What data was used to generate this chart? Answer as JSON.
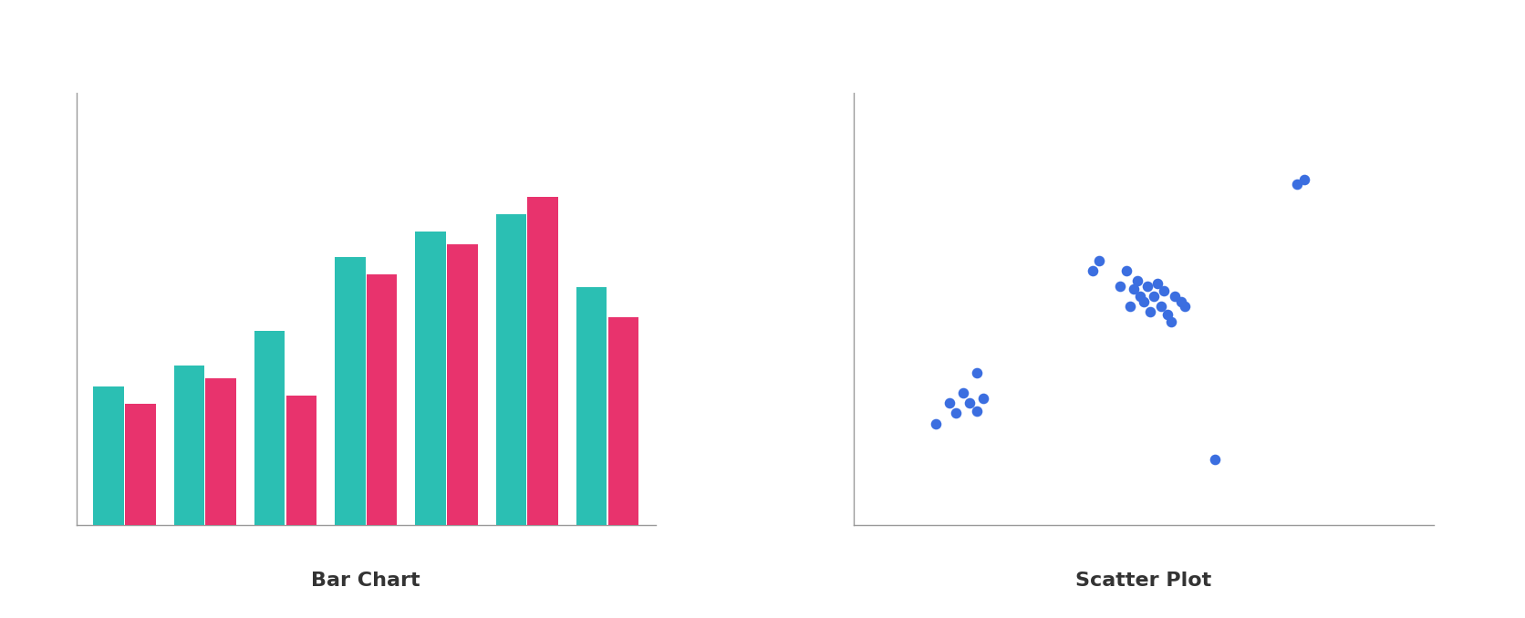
{
  "bar_teal": [
    3.2,
    3.7,
    4.5,
    6.2,
    6.8,
    7.2,
    5.5
  ],
  "bar_pink": [
    2.8,
    3.4,
    3.0,
    5.8,
    6.5,
    7.6,
    4.8
  ],
  "bar_color_teal": "#2BBFB3",
  "bar_color_pink": "#E8336D",
  "bar_title": "Bar Chart",
  "scatter_x": [
    2.2,
    2.4,
    2.5,
    2.6,
    2.7,
    2.8,
    2.8,
    2.9,
    4.5,
    4.9,
    5.0,
    5.05,
    5.1,
    5.15,
    5.2,
    5.25,
    5.3,
    5.35,
    5.4,
    5.45,
    5.5,
    5.55,
    5.6,
    5.65,
    5.7,
    5.8,
    5.85,
    4.6,
    7.5,
    7.6,
    6.3
  ],
  "scatter_y": [
    3.5,
    3.9,
    3.7,
    4.1,
    3.9,
    3.75,
    4.5,
    4.0,
    6.5,
    6.2,
    6.5,
    5.8,
    6.15,
    6.3,
    6.0,
    5.9,
    6.2,
    5.7,
    6.0,
    6.25,
    5.8,
    6.1,
    5.65,
    5.5,
    6.0,
    5.9,
    5.8,
    6.7,
    8.2,
    8.3,
    2.8
  ],
  "scatter_color": "#3B6EE0",
  "scatter_title": "Scatter Plot",
  "bg_color": "#FFFFFF",
  "grid_color": "#E4E8F0",
  "axis_color": "#999999",
  "title_color": "#333333",
  "title_fontsize": 16,
  "bar_ylim": [
    0,
    10
  ],
  "scatter_xlim": [
    1.0,
    9.5
  ],
  "scatter_ylim": [
    1.5,
    10.0
  ]
}
